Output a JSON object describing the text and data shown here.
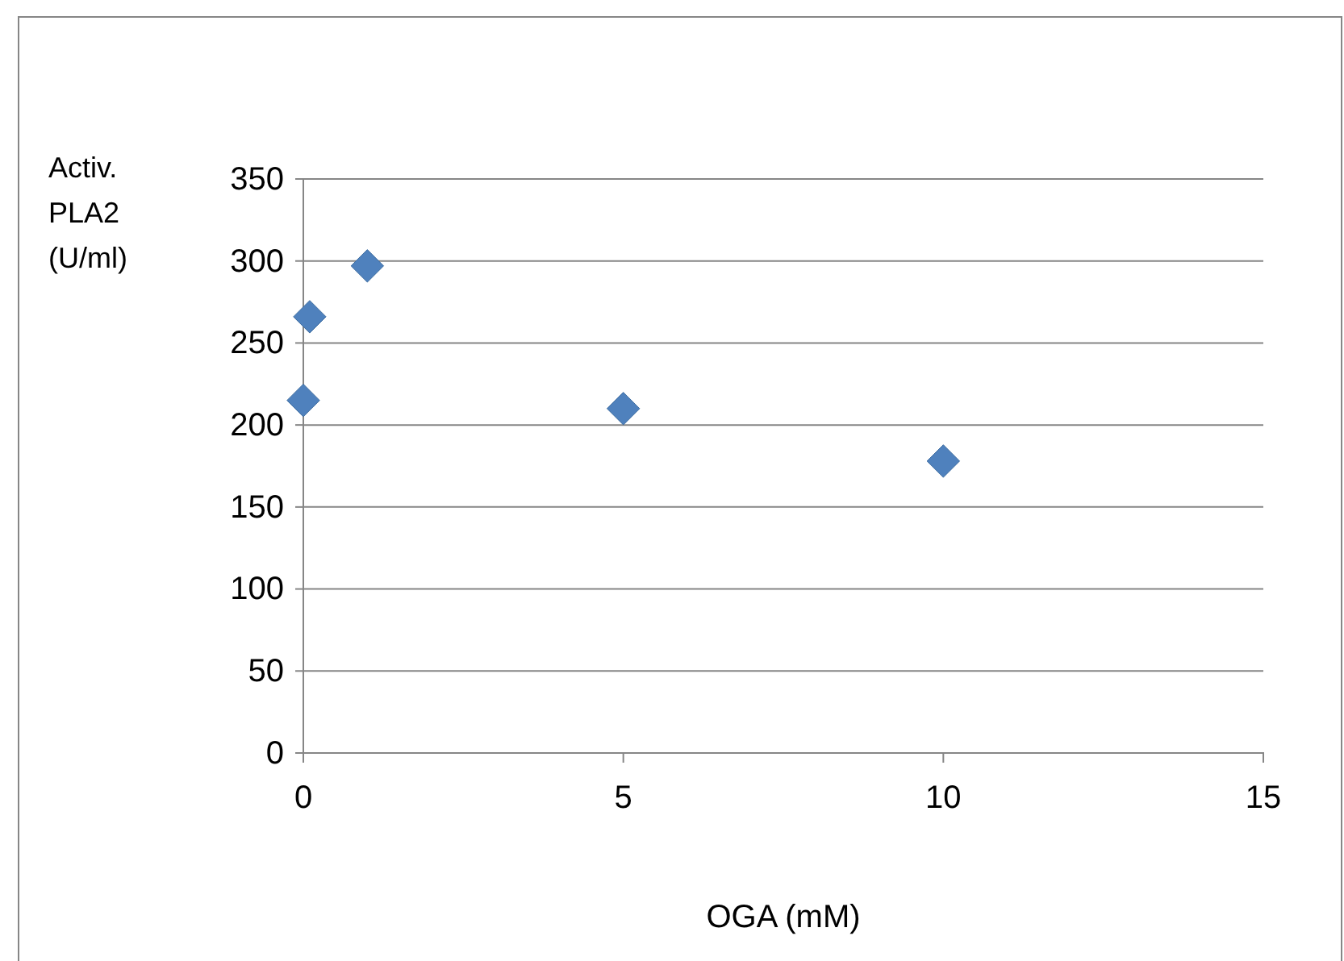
{
  "chart_data": {
    "type": "scatter",
    "xlabel": "OGA (mM)",
    "ylabel": "Activ. PLA2 (U/ml)",
    "series": [
      {
        "color": "#4f81bd",
        "x": [
          0,
          0.1,
          1,
          5,
          10
        ],
        "values": [
          215,
          266,
          297,
          210,
          178
        ]
      }
    ],
    "xlim": [
      0,
      15
    ],
    "xticks": [
      0,
      5,
      10,
      15
    ],
    "ylim": [
      0,
      350
    ],
    "yticks": [
      0,
      50,
      100,
      150,
      200,
      250,
      300,
      350
    ],
    "grid": "y",
    "marker": "diamond"
  }
}
